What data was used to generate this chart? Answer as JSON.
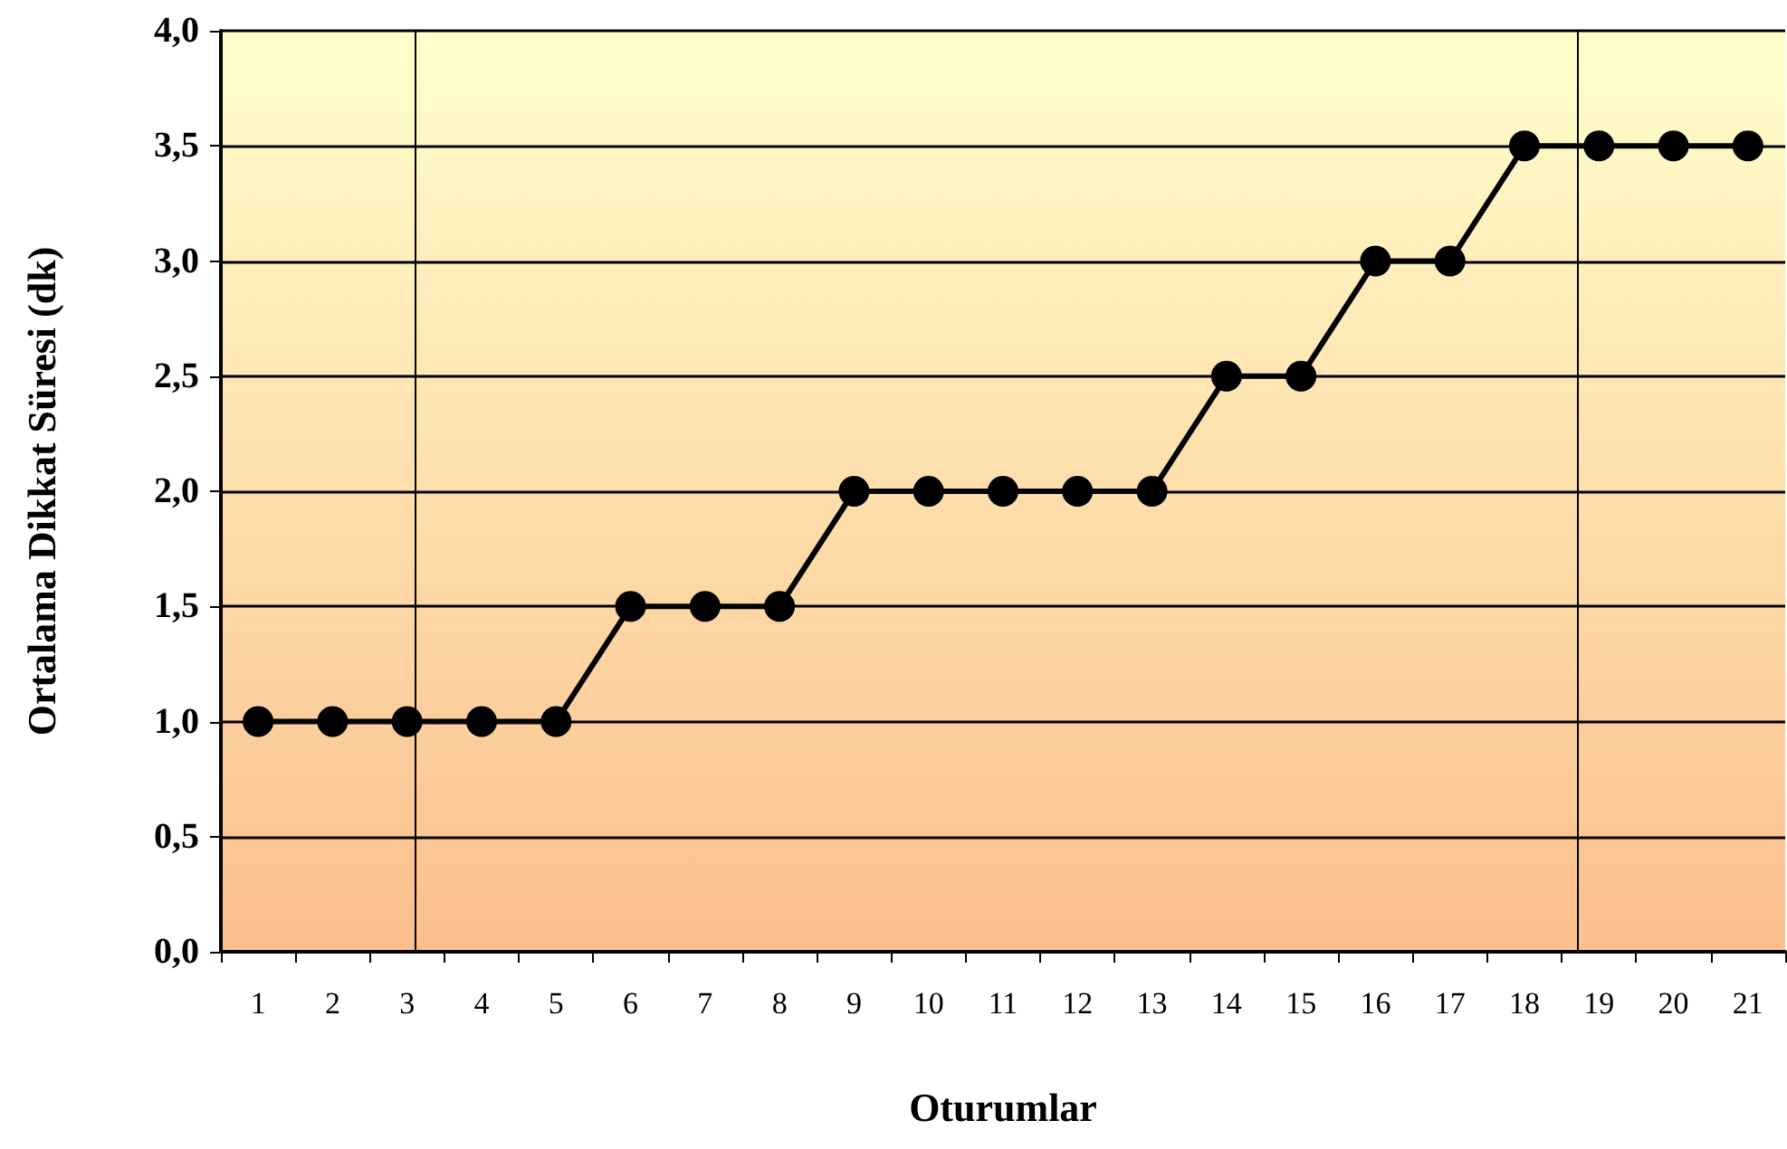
{
  "chart_data": {
    "type": "line",
    "xlabel": "Oturumlar",
    "ylabel": "Ortalama Dikkat Süresi (dk)",
    "x": [
      1,
      2,
      3,
      4,
      5,
      6,
      7,
      8,
      9,
      10,
      11,
      12,
      13,
      14,
      15,
      16,
      17,
      18,
      19,
      20,
      21
    ],
    "series": [
      {
        "color": "#000000",
        "values": [
          1,
          1,
          1,
          1,
          1,
          1.5,
          1.5,
          1.5,
          2,
          2,
          2,
          2,
          2,
          2.5,
          2.5,
          3,
          3,
          3.5,
          3.5,
          3.5,
          3.5
        ]
      }
    ],
    "xlim": [
      0.5,
      21.5
    ],
    "xticks": [
      1,
      2,
      3,
      4,
      5,
      6,
      7,
      8,
      9,
      10,
      11,
      12,
      13,
      14,
      15,
      16,
      17,
      18,
      19,
      20,
      21
    ],
    "ylim": [
      0,
      4
    ],
    "yticks": [
      {
        "value": 0,
        "label": "0,0"
      },
      {
        "value": 0.5,
        "label": "0,5"
      },
      {
        "value": 1,
        "label": "1,0"
      },
      {
        "value": 1.5,
        "label": "1,5"
      },
      {
        "value": 2,
        "label": "2,0"
      },
      {
        "value": 2.5,
        "label": "2,5"
      },
      {
        "value": 3,
        "label": "3,0"
      },
      {
        "value": 3.5,
        "label": "3,5"
      },
      {
        "value": 4,
        "label": "4,0"
      }
    ],
    "ref_lines": [
      {
        "axis": "x",
        "value": 3.1,
        "color": "#000000"
      },
      {
        "axis": "x",
        "value": 18.7,
        "color": "#000000"
      }
    ],
    "grid": "y",
    "marker": "circle",
    "line_style": "solid"
  }
}
